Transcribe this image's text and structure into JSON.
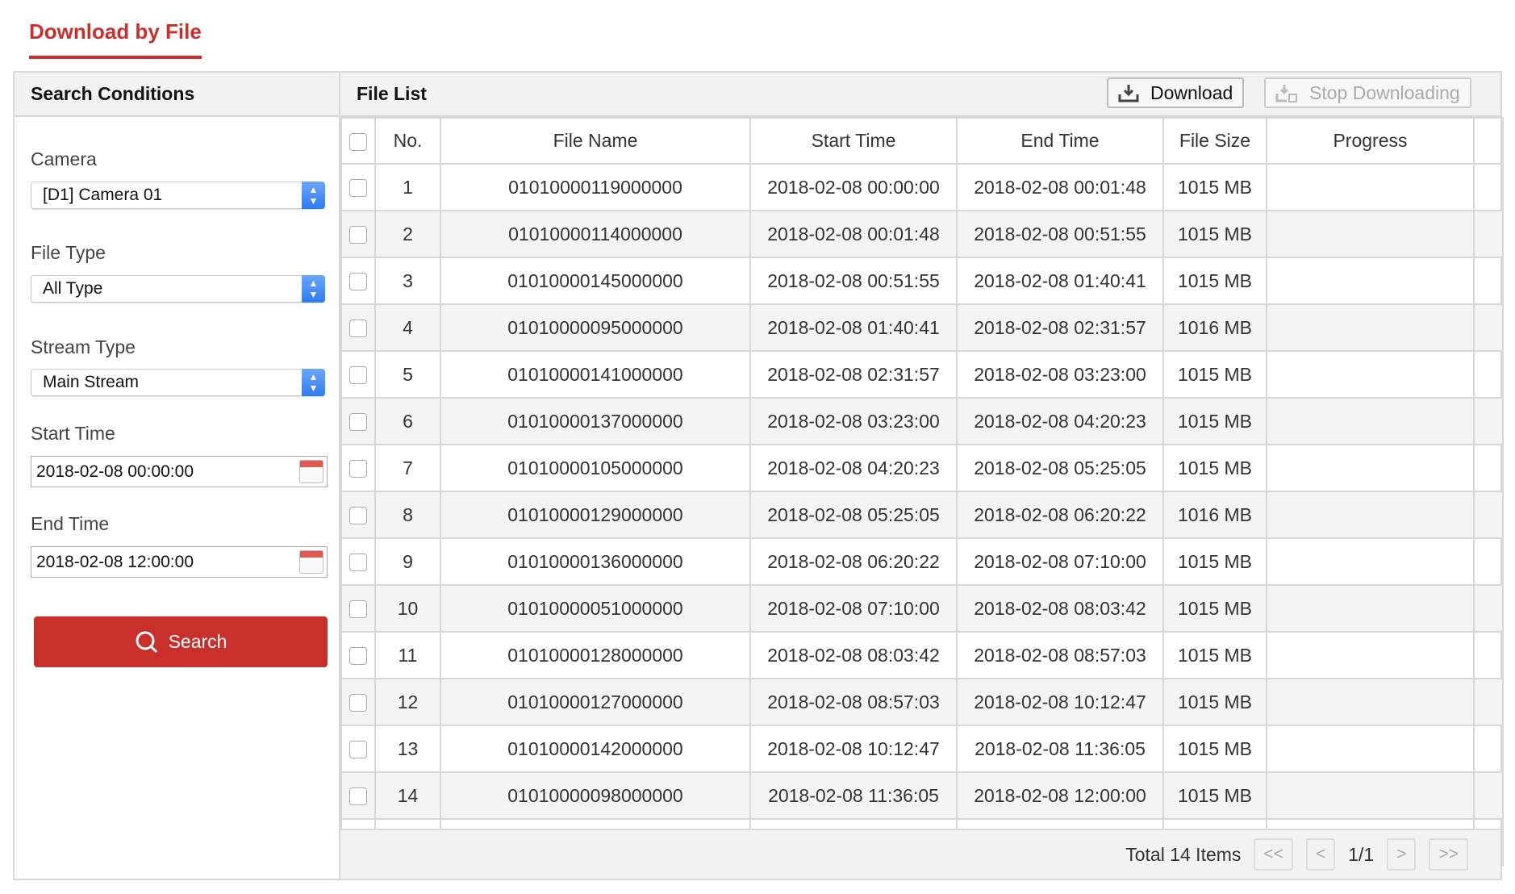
{
  "tab": {
    "title": "Download by File"
  },
  "search_panel": {
    "title": "Search Conditions",
    "camera_label": "Camera",
    "camera_value": "[D1] Camera 01",
    "file_type_label": "File Type",
    "file_type_value": "All Type",
    "stream_type_label": "Stream Type",
    "stream_type_value": "Main Stream",
    "start_time_label": "Start Time",
    "start_time_value": "2018-02-08 00:00:00",
    "end_time_label": "End Time",
    "end_time_value": "2018-02-08 12:00:00",
    "search_label": "Search"
  },
  "file_list": {
    "title": "File List",
    "download_label": "Download",
    "stop_label": "Stop Downloading",
    "columns": [
      "No.",
      "File Name",
      "Start Time",
      "End Time",
      "File Size",
      "Progress"
    ],
    "rows": [
      {
        "no": "1",
        "name": "01010000119000000",
        "start": "2018-02-08 00:00:00",
        "end": "2018-02-08 00:01:48",
        "size": "1015 MB"
      },
      {
        "no": "2",
        "name": "01010000114000000",
        "start": "2018-02-08 00:01:48",
        "end": "2018-02-08 00:51:55",
        "size": "1015 MB"
      },
      {
        "no": "3",
        "name": "01010000145000000",
        "start": "2018-02-08 00:51:55",
        "end": "2018-02-08 01:40:41",
        "size": "1015 MB"
      },
      {
        "no": "4",
        "name": "01010000095000000",
        "start": "2018-02-08 01:40:41",
        "end": "2018-02-08 02:31:57",
        "size": "1016 MB"
      },
      {
        "no": "5",
        "name": "01010000141000000",
        "start": "2018-02-08 02:31:57",
        "end": "2018-02-08 03:23:00",
        "size": "1015 MB"
      },
      {
        "no": "6",
        "name": "01010000137000000",
        "start": "2018-02-08 03:23:00",
        "end": "2018-02-08 04:20:23",
        "size": "1015 MB"
      },
      {
        "no": "7",
        "name": "01010000105000000",
        "start": "2018-02-08 04:20:23",
        "end": "2018-02-08 05:25:05",
        "size": "1015 MB"
      },
      {
        "no": "8",
        "name": "01010000129000000",
        "start": "2018-02-08 05:25:05",
        "end": "2018-02-08 06:20:22",
        "size": "1016 MB"
      },
      {
        "no": "9",
        "name": "01010000136000000",
        "start": "2018-02-08 06:20:22",
        "end": "2018-02-08 07:10:00",
        "size": "1015 MB"
      },
      {
        "no": "10",
        "name": "01010000051000000",
        "start": "2018-02-08 07:10:00",
        "end": "2018-02-08 08:03:42",
        "size": "1015 MB"
      },
      {
        "no": "11",
        "name": "01010000128000000",
        "start": "2018-02-08 08:03:42",
        "end": "2018-02-08 08:57:03",
        "size": "1015 MB"
      },
      {
        "no": "12",
        "name": "01010000127000000",
        "start": "2018-02-08 08:57:03",
        "end": "2018-02-08 10:12:47",
        "size": "1015 MB"
      },
      {
        "no": "13",
        "name": "01010000142000000",
        "start": "2018-02-08 10:12:47",
        "end": "2018-02-08 11:36:05",
        "size": "1015 MB"
      },
      {
        "no": "14",
        "name": "01010000098000000",
        "start": "2018-02-08 11:36:05",
        "end": "2018-02-08 12:00:00",
        "size": "1015 MB"
      }
    ]
  },
  "pagination": {
    "total": "Total 14 Items",
    "first": "<<",
    "prev": "<",
    "page": "1/1",
    "next": ">",
    "last": ">>"
  },
  "colors": {
    "accent": "#c9302c",
    "select_arrow": "#2f7cf6"
  }
}
